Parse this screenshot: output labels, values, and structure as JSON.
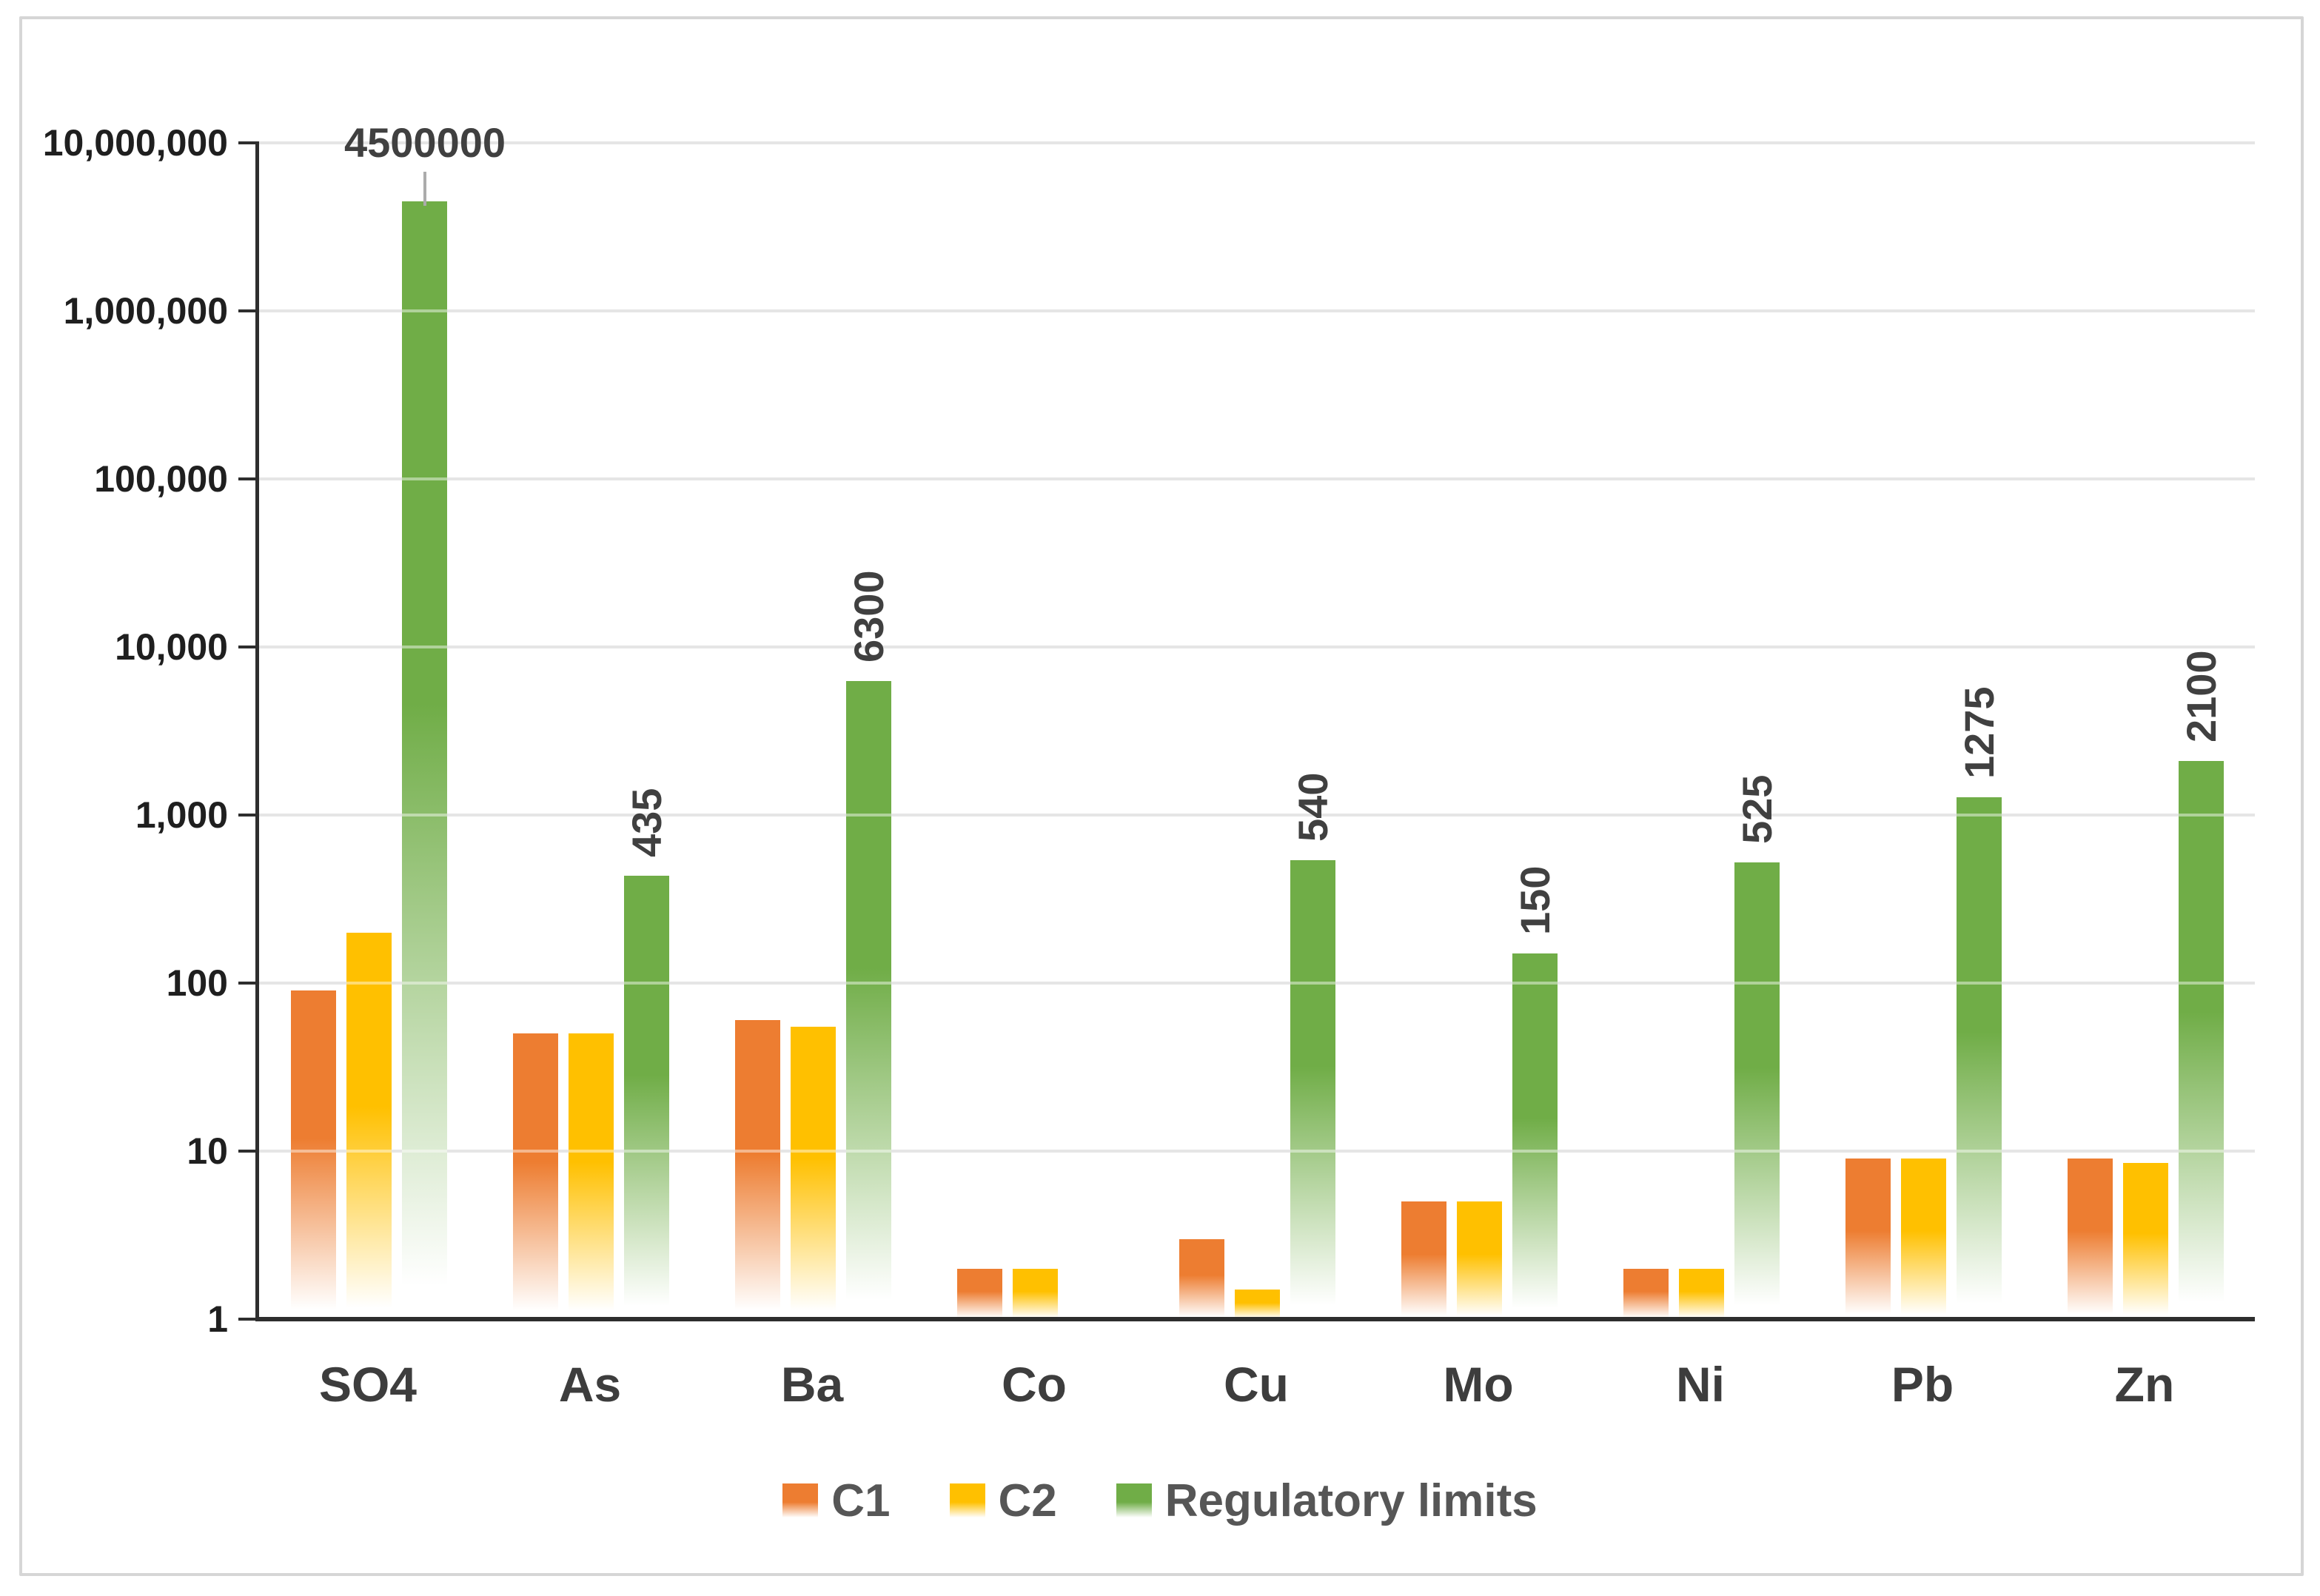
{
  "figure": {
    "background": "#ffffff",
    "border_color": "#d6d6d6",
    "text_color_axis": "#1f1f1f",
    "text_color_labels": "#404040",
    "grid_color": "#cfcfcf",
    "axis_line_color": "#2e2e2e",
    "error_bar_color": "#ababab"
  },
  "chart_data": {
    "type": "bar",
    "y_scale": "log",
    "title": "",
    "xlabel": "",
    "ylabel": "",
    "categories": [
      "SO4",
      "As",
      "Ba",
      "Co",
      "Cu",
      "Mo",
      "Ni",
      "Pb",
      "Zn"
    ],
    "series": [
      {
        "name": "C1",
        "color": "#ED7D31",
        "values": [
          90,
          50,
          60,
          2,
          3,
          5,
          2,
          9,
          9
        ]
      },
      {
        "name": "C2",
        "color": "#FFC000",
        "values": [
          200,
          50,
          55,
          2,
          1.5,
          5,
          2,
          9,
          8.5
        ]
      },
      {
        "name": "Regulatory limits",
        "color": "#70AD47",
        "values": [
          4500000,
          435,
          6300,
          null,
          540,
          150,
          525,
          1275,
          2100
        ],
        "data_labels": [
          "4500000",
          "435",
          "6300",
          null,
          "540",
          "150",
          "525",
          "1275",
          "2100"
        ],
        "horizontal_label_category": "SO4",
        "error_bar_category": "SO4"
      }
    ],
    "y_axis": {
      "min": 1,
      "max": 10000000,
      "tick_labels": [
        "10,000,000",
        "1,000,000",
        "100,000",
        "10,000",
        "1,000",
        "100",
        "10",
        "1"
      ]
    },
    "grid": true,
    "legend": {
      "position": "bottom",
      "entries": [
        {
          "label": "C1",
          "color": "#ED7D31"
        },
        {
          "label": "C2",
          "color": "#FFC000"
        },
        {
          "label": "Regulatory limits",
          "color": "#70AD47"
        }
      ]
    }
  }
}
